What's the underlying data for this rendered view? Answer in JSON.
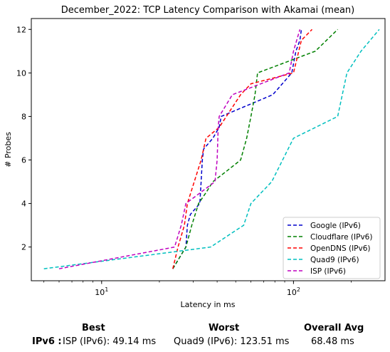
{
  "chart_data": {
    "type": "line",
    "title": "December_2022: TCP Latency Comparison with Akamai (mean)",
    "xlabel": "Latency in ms",
    "ylabel": "# Probes",
    "xscale": "log",
    "xlim": [
      4.3,
      300
    ],
    "ylim": [
      0.45,
      12.5
    ],
    "x_ticks": [
      {
        "value": 10,
        "label": "10^1"
      },
      {
        "value": 100,
        "label": "10^2"
      }
    ],
    "y_ticks": [
      2,
      4,
      6,
      8,
      10,
      12
    ],
    "grid": false,
    "legend": "bottom-right",
    "series": [
      {
        "name": "Google (IPv6)",
        "color": "#0000cc",
        "x": [
          23.5,
          27.5,
          28,
          29,
          32.5,
          33,
          33.5,
          34,
          38,
          41,
          42,
          78,
          98,
          103,
          108,
          110
        ],
        "y": [
          1,
          2,
          3,
          3.5,
          4,
          5,
          6,
          6.5,
          7,
          7.5,
          8,
          9,
          10,
          11,
          11.5,
          12
        ]
      },
      {
        "name": "Cloudflare (IPv6)",
        "color": "#008000",
        "x": [
          23.5,
          27.5,
          29.5,
          32,
          35,
          38,
          45,
          53,
          57,
          60,
          63,
          65,
          130,
          170
        ],
        "y": [
          1,
          2,
          3,
          4,
          4.5,
          5,
          5.5,
          6,
          7,
          8,
          9,
          10,
          11,
          12
        ]
      },
      {
        "name": "OpenDNS (IPv6)",
        "color": "#ff0000",
        "x": [
          23.5,
          25,
          27,
          28,
          33,
          35,
          41,
          53,
          60,
          100,
          110,
          125
        ],
        "y": [
          1,
          2,
          3,
          4,
          6,
          7,
          7.5,
          9,
          9.5,
          10,
          11.5,
          12
        ]
      },
      {
        "name": "Quad9 (IPv6)",
        "color": "#00bfbf",
        "x": [
          5,
          37,
          55,
          60,
          77,
          100,
          170,
          190,
          225,
          280
        ],
        "y": [
          1,
          2,
          3,
          4,
          5,
          7,
          8,
          10,
          11,
          12
        ]
      },
      {
        "name": "ISP (IPv6)",
        "color": "#bf00bf",
        "x": [
          6,
          24,
          26,
          27.5,
          39,
          40,
          40.5,
          41,
          48,
          95,
          100,
          108
        ],
        "y": [
          1,
          2,
          3,
          4,
          5,
          6,
          7.5,
          8,
          9,
          10,
          11,
          12
        ]
      }
    ]
  },
  "summary": {
    "best_header": "Best",
    "worst_header": "Worst",
    "avg_header": "Overall Avg",
    "row_label": "IPv6 :",
    "best_value": "ISP (IPv6): 49.14 ms",
    "worst_value": "Quad9 (IPv6): 123.51 ms",
    "avg_value": "68.48 ms"
  }
}
